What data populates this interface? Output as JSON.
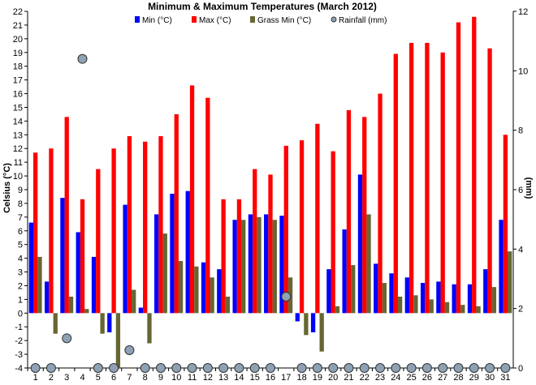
{
  "chart_data": {
    "type": "bar",
    "title": "Minimum & Maximum Temperatures (March 2012)",
    "ylabel": "Celsius (°C)",
    "y2label": "(mm)",
    "ylim": [
      -4,
      22
    ],
    "y2lim": [
      0,
      12
    ],
    "yticks": [
      "-4",
      "-3",
      "-2",
      "-1",
      "0",
      "1",
      "2",
      "3",
      "4",
      "5",
      "6",
      "7",
      "8",
      "9",
      "10",
      "11",
      "12",
      "13",
      "14",
      "15",
      "16",
      "17",
      "18",
      "19",
      "20",
      "21",
      "22"
    ],
    "y2ticks": [
      "0",
      "2",
      "4",
      "6",
      "8",
      "10",
      "12"
    ],
    "categories": [
      "1",
      "2",
      "3",
      "4",
      "5",
      "6",
      "7",
      "8",
      "9",
      "10",
      "11",
      "12",
      "13",
      "14",
      "15",
      "16",
      "17",
      "18",
      "19",
      "20",
      "21",
      "22",
      "23",
      "24",
      "25",
      "26",
      "27",
      "28",
      "29",
      "30",
      "31"
    ],
    "series": [
      {
        "name": "Min (°C)",
        "color": "#0000ff",
        "axis": "left",
        "values": [
          6.6,
          2.3,
          8.4,
          5.9,
          4.1,
          -1.4,
          7.9,
          0.4,
          7.2,
          8.7,
          8.9,
          3.7,
          3.2,
          6.8,
          7.2,
          7.2,
          7.1,
          -0.6,
          -1.4,
          3.2,
          6.1,
          10.1,
          3.6,
          2.9,
          2.6,
          2.2,
          2.3,
          2.1,
          2.1,
          3.2,
          6.8
        ]
      },
      {
        "name": "Max (°C)",
        "color": "#ff0000",
        "axis": "left",
        "values": [
          11.7,
          12.0,
          14.3,
          8.3,
          10.5,
          12.0,
          12.9,
          12.5,
          12.9,
          14.5,
          16.6,
          15.7,
          8.3,
          8.3,
          10.5,
          10.1,
          12.2,
          12.6,
          13.8,
          11.8,
          14.8,
          14.3,
          16.0,
          18.9,
          19.7,
          19.7,
          19.0,
          21.2,
          21.6,
          19.3,
          13.0
        ]
      },
      {
        "name": "Grass Min (°C)",
        "color": "#666633",
        "axis": "left",
        "values": [
          4.1,
          -1.5,
          1.2,
          0.3,
          -1.5,
          -4.0,
          1.7,
          -2.2,
          5.8,
          3.8,
          3.4,
          2.6,
          1.2,
          6.8,
          7.0,
          6.8,
          2.6,
          -1.6,
          -2.8,
          0.5,
          3.5,
          7.2,
          2.2,
          1.2,
          1.3,
          1.0,
          0.8,
          0.6,
          0.5,
          1.9,
          4.5
        ]
      },
      {
        "name": "Rainfall (mm)",
        "color": "#8fa1b4",
        "axis": "right",
        "values": [
          0,
          0,
          1.0,
          10.4,
          0,
          0,
          0.6,
          0,
          0,
          0,
          0,
          0,
          0,
          0,
          0,
          0,
          2.4,
          0,
          0,
          0,
          0,
          0,
          0,
          0,
          0,
          0,
          0,
          0,
          0,
          0,
          0
        ]
      }
    ],
    "legend_placement": "top",
    "grid": false
  }
}
